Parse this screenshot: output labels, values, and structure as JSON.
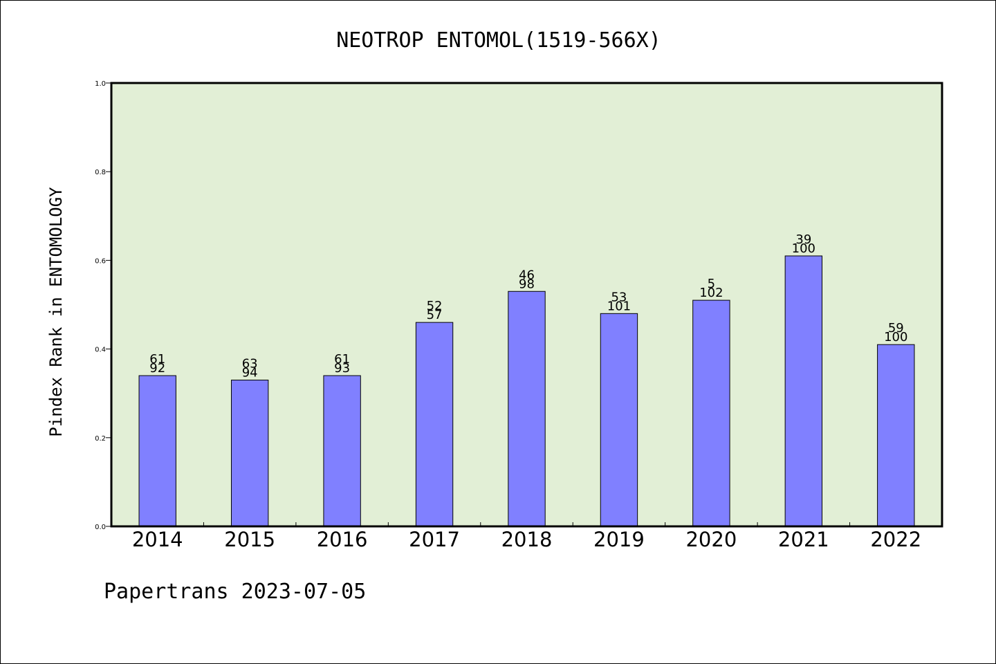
{
  "footer": "Papertrans 2023-07-05",
  "chart_data": {
    "type": "bar",
    "title": "NEOTROP ENTOMOL(1519-566X)",
    "xlabel": "",
    "ylabel": "Pindex Rank in ENTOMOLOGY",
    "ylim": [
      0,
      1.0
    ],
    "yticks": [
      "0.0",
      "0.2",
      "0.4",
      "0.6",
      "0.8",
      "1.0"
    ],
    "categories": [
      "2014",
      "2015",
      "2016",
      "2017",
      "2018",
      "2019",
      "2020",
      "2021",
      "2022"
    ],
    "values": [
      0.34,
      0.33,
      0.34,
      0.46,
      0.53,
      0.48,
      0.51,
      0.61,
      0.41
    ],
    "labels_top": [
      "61",
      "63",
      "61",
      "52",
      "46",
      "53",
      "5",
      "39",
      "59"
    ],
    "labels_bottom": [
      "92",
      "94",
      "93",
      "57",
      "98",
      "101",
      "102",
      "100",
      "100"
    ],
    "grid": false,
    "colors": {
      "plot_background": "#e2efd6",
      "bar_fill": "#8080ff",
      "bar_stroke": "#000000"
    }
  }
}
